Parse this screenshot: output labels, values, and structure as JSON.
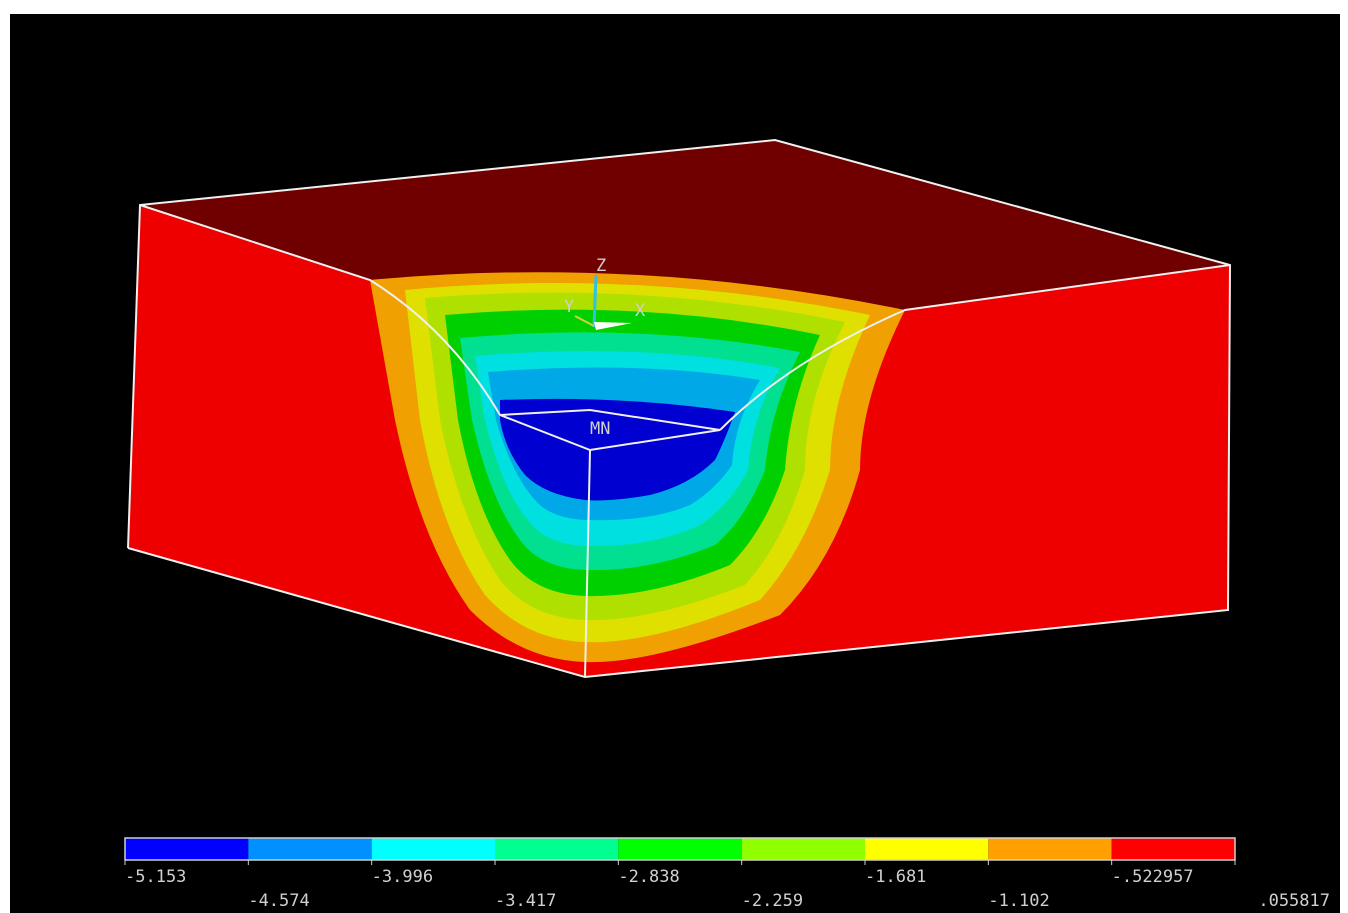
{
  "viewport": {
    "triad": {
      "z": "Z",
      "y": "Y",
      "x": "X"
    },
    "min_marker": "MN"
  },
  "legend": {
    "colors": [
      "#0000ff",
      "#0090ff",
      "#00ffff",
      "#00ff90",
      "#00ff00",
      "#90ff00",
      "#ffff00",
      "#ffa000",
      "#ff0000"
    ],
    "labels": [
      "-5.153",
      "-4.574",
      "-3.996",
      "-3.417",
      "-2.838",
      "-2.259",
      "-1.681",
      "-1.102",
      "-.522957",
      ".055817"
    ]
  }
}
